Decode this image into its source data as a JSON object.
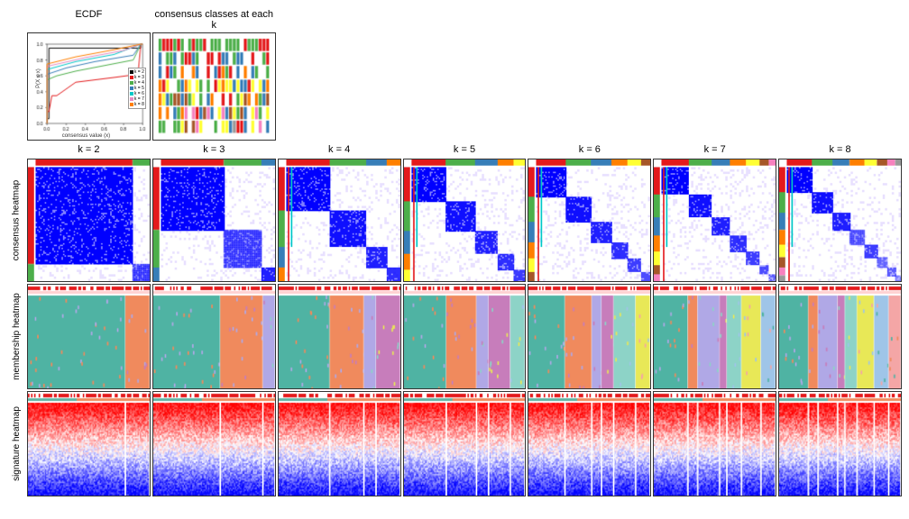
{
  "titles": {
    "ecdf": "ECDF",
    "cck": "consensus classes at each k"
  },
  "rowlabels": {
    "r1": "consensus heatmap",
    "r2": "membership heatmap",
    "r3": "signature heatmap"
  },
  "k_labels": [
    "k = 2",
    "k = 3",
    "k = 4",
    "k = 5",
    "k = 6",
    "k = 7",
    "k = 8"
  ],
  "ecdf": {
    "xlabel": "consensus value (x)",
    "ylabel": "P(X ≤ x)",
    "xticks": [
      "0.0",
      "0.2",
      "0.4",
      "0.6",
      "0.8",
      "1.0"
    ],
    "yticks": [
      "0.0",
      "0.2",
      "0.4",
      "0.6",
      "0.8",
      "1.0"
    ],
    "legend": [
      [
        "k = 2",
        "#000000"
      ],
      [
        "k = 3",
        "#e41a1c"
      ],
      [
        "k = 4",
        "#4daf4a"
      ],
      [
        "k = 5",
        "#377eb8"
      ],
      [
        "k = 6",
        "#00c8c8"
      ],
      [
        "k = 7",
        "#e78ac3"
      ],
      [
        "k = 8",
        "#ff7f00"
      ]
    ],
    "curves": [
      {
        "col": "#000000",
        "pts": [
          [
            0,
            0
          ],
          [
            0,
            0.06
          ],
          [
            0.02,
            0.06
          ],
          [
            0.02,
            0.95
          ],
          [
            0.98,
            0.95
          ],
          [
            0.98,
            1
          ],
          [
            1,
            1
          ]
        ]
      },
      {
        "col": "#e41a1c",
        "pts": [
          [
            0,
            0
          ],
          [
            0,
            0.15
          ],
          [
            0.02,
            0.15
          ],
          [
            0.05,
            0.35
          ],
          [
            0.1,
            0.35
          ],
          [
            0.3,
            0.52
          ],
          [
            0.5,
            0.55
          ],
          [
            0.7,
            0.58
          ],
          [
            0.95,
            0.62
          ],
          [
            0.98,
            1
          ],
          [
            1,
            1
          ]
        ]
      },
      {
        "col": "#4daf4a",
        "pts": [
          [
            0,
            0
          ],
          [
            0,
            0.55
          ],
          [
            0.1,
            0.6
          ],
          [
            0.3,
            0.66
          ],
          [
            0.6,
            0.73
          ],
          [
            0.9,
            0.8
          ],
          [
            0.98,
            1
          ],
          [
            1,
            1
          ]
        ]
      },
      {
        "col": "#377eb8",
        "pts": [
          [
            0,
            0
          ],
          [
            0,
            0.62
          ],
          [
            0.2,
            0.7
          ],
          [
            0.5,
            0.78
          ],
          [
            0.9,
            0.86
          ],
          [
            0.98,
            1
          ],
          [
            1,
            1
          ]
        ]
      },
      {
        "col": "#00c8c8",
        "pts": [
          [
            0,
            0
          ],
          [
            0,
            0.68
          ],
          [
            0.3,
            0.78
          ],
          [
            0.7,
            0.87
          ],
          [
            0.98,
            1
          ],
          [
            1,
            1
          ]
        ]
      },
      {
        "col": "#e78ac3",
        "pts": [
          [
            0,
            0
          ],
          [
            0,
            0.72
          ],
          [
            0.4,
            0.83
          ],
          [
            0.8,
            0.92
          ],
          [
            0.98,
            1
          ],
          [
            1,
            1
          ]
        ]
      },
      {
        "col": "#ff7f00",
        "pts": [
          [
            0,
            0
          ],
          [
            0,
            0.75
          ],
          [
            0.3,
            0.84
          ],
          [
            0.7,
            0.93
          ],
          [
            0.98,
            1
          ],
          [
            1,
            1
          ]
        ]
      }
    ]
  },
  "palette": {
    "class": [
      "#e41a1c",
      "#4daf4a",
      "#377eb8",
      "#ff7f00",
      "#ffff33",
      "#a65628",
      "#f781bf",
      "#999999"
    ],
    "member": [
      "#4fb3a3",
      "#f08a5d",
      "#b0a8e6",
      "#c77dbb",
      "#8dd3c7",
      "#e8e857",
      "#9fc5e8",
      "#f4a6a6"
    ]
  },
  "consensusBlocks": {
    "2": [
      0.85,
      0.15
    ],
    "3": [
      0.55,
      0.33,
      0.12
    ],
    "4": [
      0.38,
      0.32,
      0.18,
      0.12
    ],
    "5": [
      0.3,
      0.26,
      0.2,
      0.14,
      0.1
    ],
    "6": [
      0.26,
      0.22,
      0.18,
      0.14,
      0.12,
      0.08
    ],
    "7": [
      0.24,
      0.2,
      0.16,
      0.14,
      0.12,
      0.08,
      0.06
    ],
    "8": [
      0.22,
      0.18,
      0.15,
      0.13,
      0.11,
      0.09,
      0.07,
      0.05
    ]
  },
  "memberWidths": {
    "2": [
      0.8,
      0.2
    ],
    "3": [
      0.55,
      0.35,
      0.1
    ],
    "4": [
      0.42,
      0.28,
      0.1,
      0.2
    ],
    "5": [
      0.35,
      0.25,
      0.1,
      0.18,
      0.12
    ],
    "6": [
      0.3,
      0.22,
      0.08,
      0.1,
      0.18,
      0.12
    ],
    "7": [
      0.28,
      0.08,
      0.18,
      0.06,
      0.12,
      0.16,
      0.12
    ],
    "8": [
      0.24,
      0.08,
      0.16,
      0.06,
      0.1,
      0.14,
      0.12,
      0.1
    ]
  },
  "consNoise": 0.08,
  "sigCols": 100,
  "sigRows": 60,
  "colors": {
    "border": "#333333",
    "high": "#0000ff",
    "low": "#ffffff",
    "off": "#e8e0ff",
    "red": "#cc0000",
    "blue": "#0000cc",
    "white": "#ffffff",
    "anno1": "#e41a1c",
    "anno2": "#00c8c8"
  }
}
